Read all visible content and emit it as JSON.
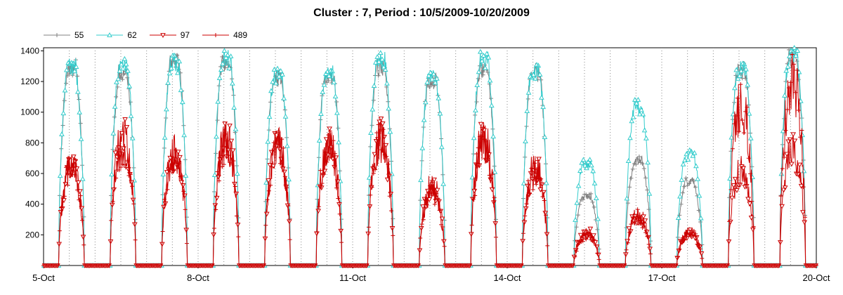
{
  "chart_data": {
    "type": "line",
    "title": "Cluster : 7, Period : 10/5/2009-10/20/2009",
    "xlabel": "",
    "ylabel": "",
    "x_ticks": [
      "5-Oct",
      "8-Oct",
      "11-Oct",
      "14-Oct",
      "17-Oct",
      "20-Oct"
    ],
    "x_tick_days": [
      0,
      3,
      6,
      9,
      12,
      15
    ],
    "xlim_days": [
      0,
      15
    ],
    "ylim": [
      0,
      1420
    ],
    "y_ticks": [
      200,
      400,
      600,
      800,
      1000,
      1200,
      1400
    ],
    "grid": "vertical dotted at noon and day boundaries",
    "legend_position": "top-left",
    "sunrise_hour": 7,
    "sunset_hour": 19,
    "series": [
      {
        "name": "55",
        "color": "#808080",
        "marker": "plus",
        "daily_peak": [
          1330,
          1290,
          1360,
          1350,
          1250,
          1280,
          1320,
          1230,
          1310,
          1300,
          460,
          700,
          560,
          1300,
          1380
        ]
      },
      {
        "name": "62",
        "color": "#33cccc",
        "marker": "triangle-up",
        "daily_peak": [
          1330,
          1330,
          1350,
          1380,
          1260,
          1280,
          1370,
          1250,
          1370,
          1300,
          680,
          1060,
          740,
          1310,
          1410
        ]
      },
      {
        "name": "97",
        "color": "#cc0000",
        "marker": "triangle-down",
        "daily_peak": [
          760,
          960,
          840,
          950,
          900,
          920,
          950,
          600,
          960,
          740,
          250,
          380,
          250,
          720,
          880
        ]
      },
      {
        "name": "489",
        "color": "#cc0000",
        "marker": "plus",
        "daily_peak": [
          740,
          900,
          820,
          920,
          880,
          900,
          930,
          560,
          920,
          700,
          230,
          360,
          240,
          1200,
          1390
        ]
      }
    ]
  }
}
